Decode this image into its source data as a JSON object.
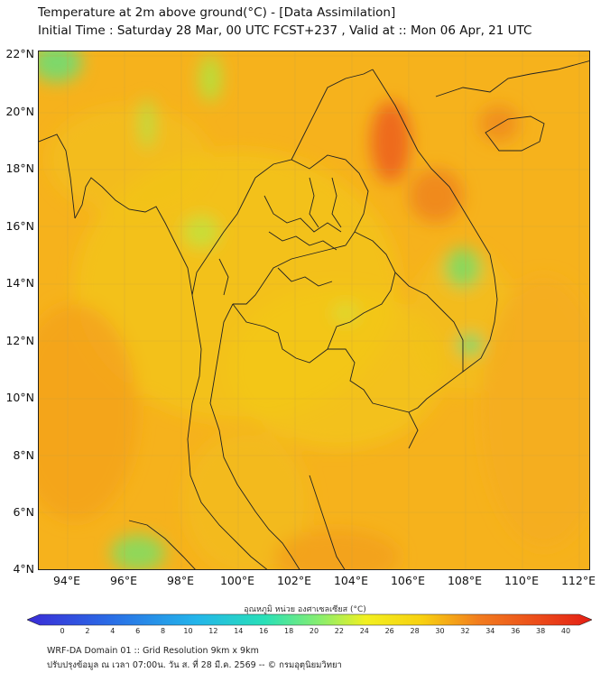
{
  "header": {
    "title_line1": "Temperature at 2m above ground(°C) - [Data Assimilation]",
    "title_line2": "Initial Time : Saturday 28 Mar, 00 UTC FCST+237 , Valid at :: Mon 06 Apr, 21 UTC"
  },
  "map": {
    "lat_labels": [
      "22°N",
      "20°N",
      "18°N",
      "16°N",
      "14°N",
      "12°N",
      "10°N",
      "8°N",
      "6°N",
      "4°N"
    ],
    "lon_labels": [
      "94°E",
      "96°E",
      "98°E",
      "100°E",
      "102°E",
      "104°E",
      "106°E",
      "108°E",
      "110°E",
      "112°E"
    ]
  },
  "colorbar": {
    "caption": "อุณหภูมิ หน่วย องศาเซลเซียส (°C)",
    "ticks": [
      "0",
      "2",
      "4",
      "6",
      "8",
      "10",
      "12",
      "14",
      "16",
      "18",
      "20",
      "22",
      "24",
      "26",
      "28",
      "30",
      "32",
      "34",
      "36",
      "38",
      "40"
    ],
    "colors": [
      "#3a2bd6",
      "#2f4be0",
      "#2a6ee6",
      "#2792ea",
      "#23b5ea",
      "#1fd3e0",
      "#28e0b8",
      "#56e890",
      "#8aee6c",
      "#c0f050",
      "#f2f020",
      "#f8d010",
      "#f6a81c",
      "#f27c1e",
      "#ec4e1a",
      "#e41e14"
    ]
  },
  "footer": {
    "line1": "WRF-DA Domain 01 :: Grid Resolution 9km x 9km",
    "line2": "ปรับปรุงข้อมูล ณ เวลา 07:00น. วัน ส. ที่ 28 มี.ค. 2569 -- © กรมอุตุนิยมวิทยา"
  }
}
